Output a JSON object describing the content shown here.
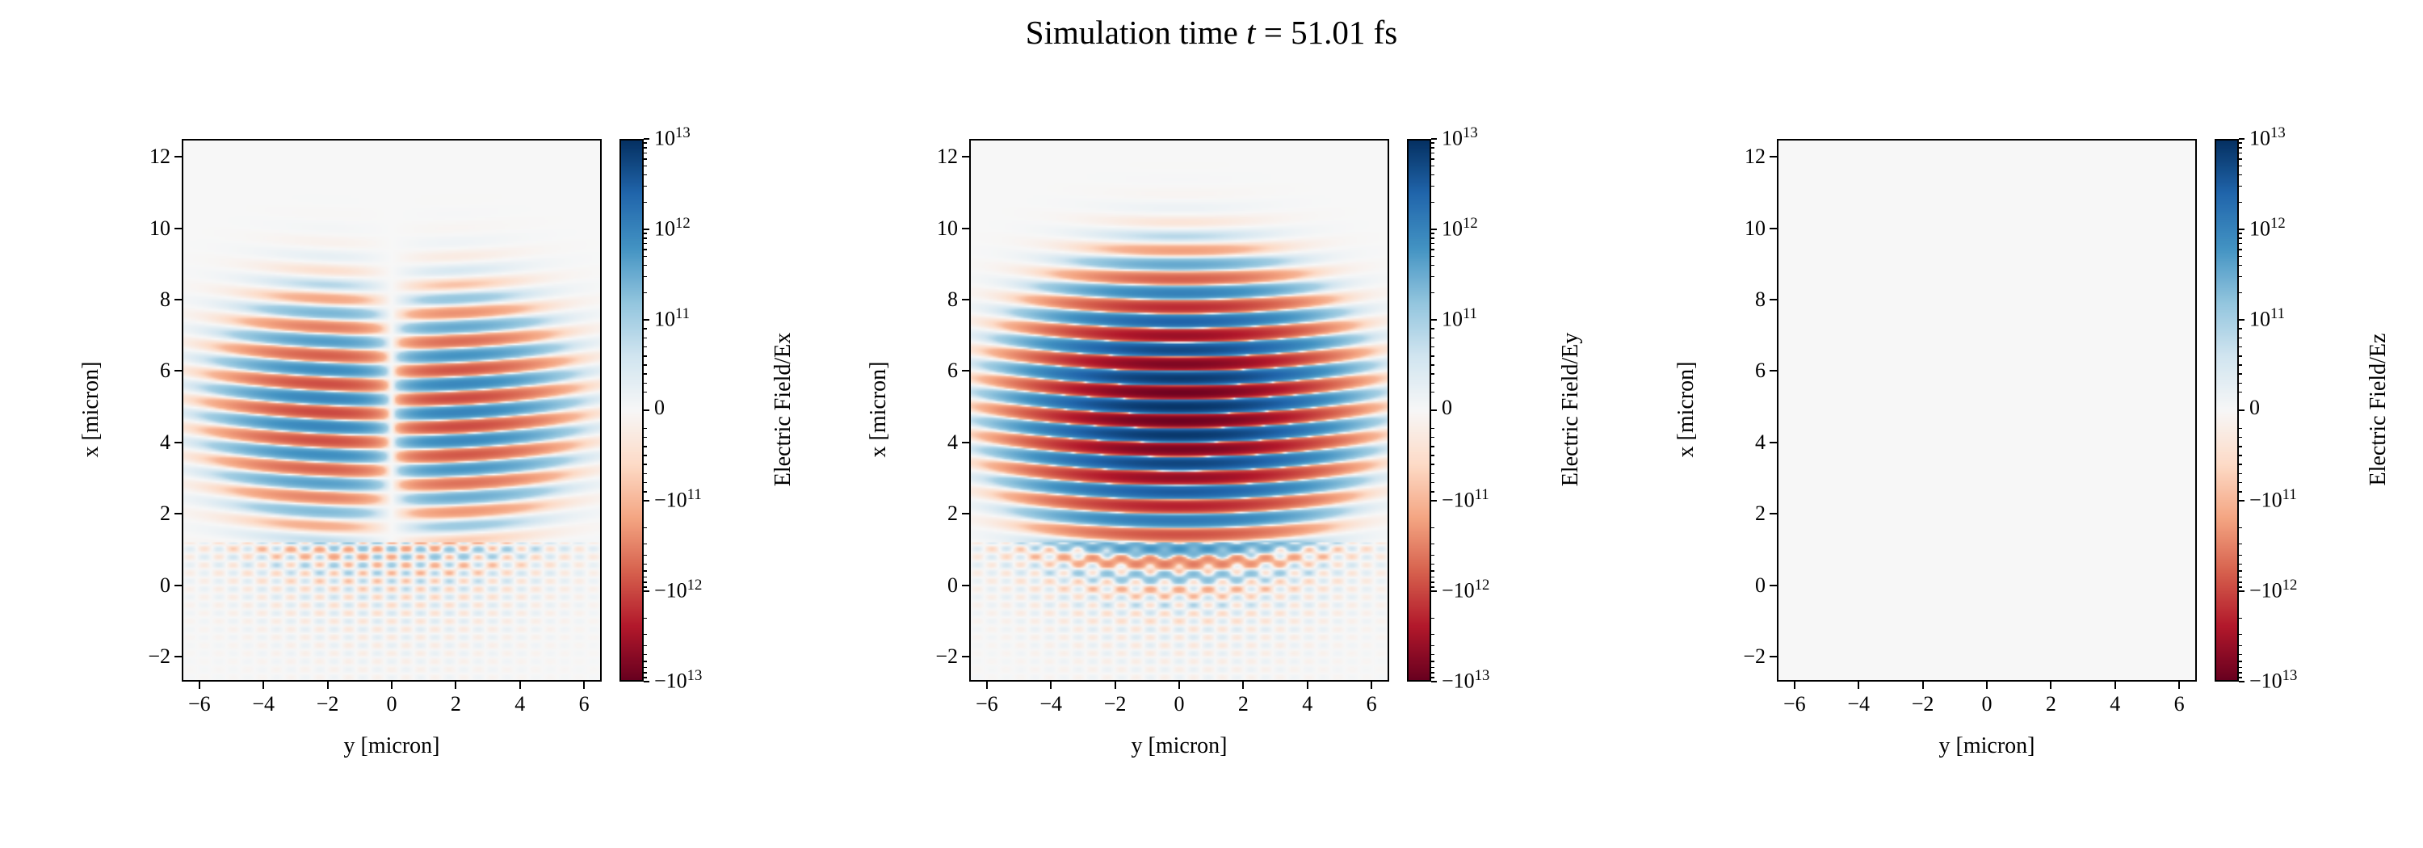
{
  "title": {
    "pre": "Simulation time ",
    "var": "t",
    "post": " = 51.01 fs"
  },
  "colors": {
    "background": "#ffffff",
    "axis": "#000000",
    "zero_field": "#f7f7f7",
    "colormap_name": "RdBu",
    "colormap_stops": [
      {
        "t": -1.0,
        "c": "#67001f"
      },
      {
        "t": -0.8,
        "c": "#b2182b"
      },
      {
        "t": -0.6,
        "c": "#d6604d"
      },
      {
        "t": -0.4,
        "c": "#f4a582"
      },
      {
        "t": -0.2,
        "c": "#fddbc7"
      },
      {
        "t": 0.0,
        "c": "#f7f7f7"
      },
      {
        "t": 0.2,
        "c": "#d1e5f0"
      },
      {
        "t": 0.4,
        "c": "#92c5de"
      },
      {
        "t": 0.6,
        "c": "#4393c3"
      },
      {
        "t": 0.8,
        "c": "#2166ac"
      },
      {
        "t": 1.0,
        "c": "#053061"
      }
    ]
  },
  "chart_data": [
    {
      "type": "heatmap",
      "field": "Ex",
      "xlabel": "y [micron]",
      "ylabel": "x [micron]",
      "xlim": [
        -6.55,
        6.55
      ],
      "ylim": [
        -2.7,
        12.5
      ],
      "xticks": [
        {
          "v": -6,
          "l": "−6"
        },
        {
          "v": -4,
          "l": "−4"
        },
        {
          "v": -2,
          "l": "−2"
        },
        {
          "v": 0,
          "l": "0"
        },
        {
          "v": 2,
          "l": "2"
        },
        {
          "v": 4,
          "l": "4"
        },
        {
          "v": 6,
          "l": "6"
        }
      ],
      "yticks": [
        {
          "v": -2,
          "l": "−2"
        },
        {
          "v": 0,
          "l": "0"
        },
        {
          "v": 2,
          "l": "2"
        },
        {
          "v": 4,
          "l": "4"
        },
        {
          "v": 6,
          "l": "6"
        },
        {
          "v": 8,
          "l": "8"
        },
        {
          "v": 10,
          "l": "10"
        },
        {
          "v": 12,
          "l": "12"
        }
      ],
      "colorbar_label": "Electric Field/Ex",
      "scale": {
        "type": "symlog",
        "linthresh": 100000000000.0,
        "vmin": -10000000000000.0,
        "vmax": 10000000000000.0
      },
      "colorbar_ticks": [
        {
          "v": 10000000000000.0,
          "base": "10",
          "exp": "13"
        },
        {
          "v": 1000000000000.0,
          "base": "10",
          "exp": "12"
        },
        {
          "v": 100000000000.0,
          "base": "10",
          "exp": "11"
        },
        {
          "v": 0,
          "base": "0",
          "exp": ""
        },
        {
          "v": -100000000000.0,
          "base": "−10",
          "exp": "11"
        },
        {
          "v": -1000000000000.0,
          "base": "−10",
          "exp": "12"
        },
        {
          "v": -10000000000000.0,
          "base": "−10",
          "exp": "13"
        }
      ],
      "model": {
        "kind": "pulse",
        "amplitude": 1000000000000.0,
        "wavelength": 0.8,
        "phase": 1.5708,
        "x_center": 4.9,
        "x_sigma": 1.6,
        "y_mode": "antisym",
        "y_sigma": 2.1,
        "curvature": 0.01,
        "ripple_amplitude": 200000000000.0,
        "ripple_xmax": 1.2
      }
    },
    {
      "type": "heatmap",
      "field": "Ey",
      "xlabel": "y [micron]",
      "ylabel": "x [micron]",
      "xlim": [
        -6.55,
        6.55
      ],
      "ylim": [
        -2.7,
        12.5
      ],
      "xticks": [
        {
          "v": -6,
          "l": "−6"
        },
        {
          "v": -4,
          "l": "−4"
        },
        {
          "v": -2,
          "l": "−2"
        },
        {
          "v": 0,
          "l": "0"
        },
        {
          "v": 2,
          "l": "2"
        },
        {
          "v": 4,
          "l": "4"
        },
        {
          "v": 6,
          "l": "6"
        }
      ],
      "yticks": [
        {
          "v": -2,
          "l": "−2"
        },
        {
          "v": 0,
          "l": "0"
        },
        {
          "v": 2,
          "l": "2"
        },
        {
          "v": 4,
          "l": "4"
        },
        {
          "v": 6,
          "l": "6"
        },
        {
          "v": 8,
          "l": "8"
        },
        {
          "v": 10,
          "l": "10"
        },
        {
          "v": 12,
          "l": "12"
        }
      ],
      "colorbar_label": "Electric Field/Ey",
      "scale": {
        "type": "symlog",
        "linthresh": 100000000000.0,
        "vmin": -10000000000000.0,
        "vmax": 10000000000000.0
      },
      "colorbar_ticks": [
        {
          "v": 10000000000000.0,
          "base": "10",
          "exp": "13"
        },
        {
          "v": 1000000000000.0,
          "base": "10",
          "exp": "12"
        },
        {
          "v": 100000000000.0,
          "base": "10",
          "exp": "11"
        },
        {
          "v": 0,
          "base": "0",
          "exp": ""
        },
        {
          "v": -100000000000.0,
          "base": "−10",
          "exp": "11"
        },
        {
          "v": -1000000000000.0,
          "base": "−10",
          "exp": "12"
        },
        {
          "v": -10000000000000.0,
          "base": "−10",
          "exp": "13"
        }
      ],
      "model": {
        "kind": "pulse",
        "amplitude": 9000000000000.0,
        "wavelength": 0.8,
        "phase": 0,
        "x_center": 4.9,
        "x_sigma": 1.6,
        "y_mode": "gauss",
        "y_sigma": 2.1,
        "curvature": 0.01,
        "ripple_amplitude": 250000000000.0,
        "ripple_xmax": 1.2
      }
    },
    {
      "type": "heatmap",
      "field": "Ez",
      "xlabel": "y [micron]",
      "ylabel": "x [micron]",
      "xlim": [
        -6.55,
        6.55
      ],
      "ylim": [
        -2.7,
        12.5
      ],
      "xticks": [
        {
          "v": -6,
          "l": "−6"
        },
        {
          "v": -4,
          "l": "−4"
        },
        {
          "v": -2,
          "l": "−2"
        },
        {
          "v": 0,
          "l": "0"
        },
        {
          "v": 2,
          "l": "2"
        },
        {
          "v": 4,
          "l": "4"
        },
        {
          "v": 6,
          "l": "6"
        }
      ],
      "yticks": [
        {
          "v": -2,
          "l": "−2"
        },
        {
          "v": 0,
          "l": "0"
        },
        {
          "v": 2,
          "l": "2"
        },
        {
          "v": 4,
          "l": "4"
        },
        {
          "v": 6,
          "l": "6"
        },
        {
          "v": 8,
          "l": "8"
        },
        {
          "v": 10,
          "l": "10"
        },
        {
          "v": 12,
          "l": "12"
        }
      ],
      "colorbar_label": "Electric Field/Ez",
      "scale": {
        "type": "symlog",
        "linthresh": 100000000000.0,
        "vmin": -10000000000000.0,
        "vmax": 10000000000000.0
      },
      "colorbar_ticks": [
        {
          "v": 10000000000000.0,
          "base": "10",
          "exp": "13"
        },
        {
          "v": 1000000000000.0,
          "base": "10",
          "exp": "12"
        },
        {
          "v": 100000000000.0,
          "base": "10",
          "exp": "11"
        },
        {
          "v": 0,
          "base": "0",
          "exp": ""
        },
        {
          "v": -100000000000.0,
          "base": "−10",
          "exp": "11"
        },
        {
          "v": -1000000000000.0,
          "base": "−10",
          "exp": "12"
        },
        {
          "v": -10000000000000.0,
          "base": "−10",
          "exp": "13"
        }
      ],
      "model": {
        "kind": "zero",
        "amplitude": 0
      }
    }
  ]
}
